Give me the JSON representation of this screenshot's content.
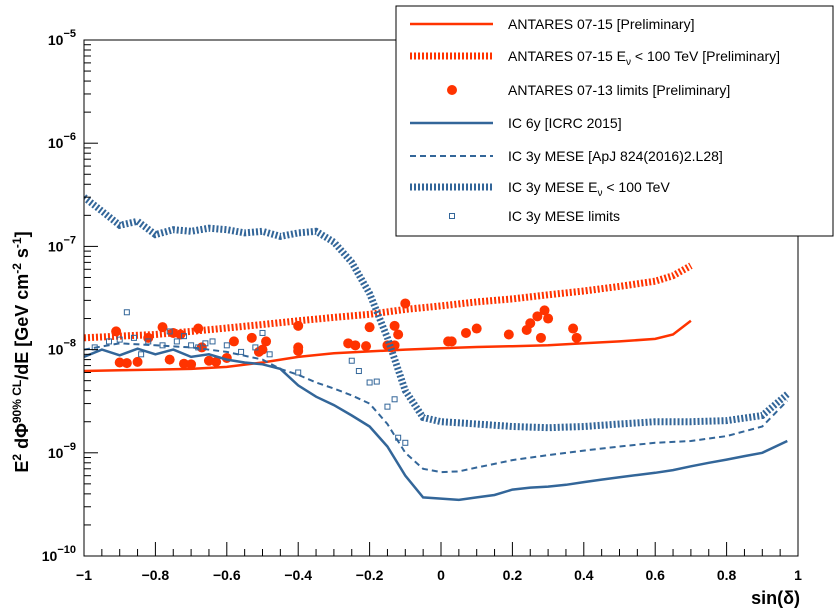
{
  "chart_data": {
    "type": "line",
    "y_scale": "log",
    "xlim": [
      -1,
      1
    ],
    "ylim": [
      1e-10,
      1e-05
    ],
    "xlabel": "sin(δ)",
    "ylabel": "E² dΦ^{90% CL}/dE [GeV cm⁻² s⁻¹]",
    "ylabel_parts": {
      "main1": "E",
      "sup1": "2",
      "main2": " dΦ",
      "sup2": "90% CL",
      "main3": "/dE [GeV cm",
      "sup3": "-2",
      "main4": " s",
      "sup4": "-1",
      "main5": "]"
    },
    "xlabel_parts": {
      "main": "sin(δ)"
    },
    "x_ticks": [
      {
        "value": -1,
        "label": "−1"
      },
      {
        "value": -0.8,
        "label": "−0.8"
      },
      {
        "value": -0.6,
        "label": "−0.6"
      },
      {
        "value": -0.4,
        "label": "−0.4"
      },
      {
        "value": -0.2,
        "label": "−0.2"
      },
      {
        "value": 0,
        "label": "0"
      },
      {
        "value": 0.2,
        "label": "0.2"
      },
      {
        "value": 0.4,
        "label": "0.4"
      },
      {
        "value": 0.6,
        "label": "0.6"
      },
      {
        "value": 0.8,
        "label": "0.8"
      },
      {
        "value": 1,
        "label": "1"
      }
    ],
    "y_ticks": [
      {
        "exp": -10,
        "base": "10",
        "sup": "−10"
      },
      {
        "exp": -9,
        "base": "10",
        "sup": "−9"
      },
      {
        "exp": -8,
        "base": "10",
        "sup": "−8"
      },
      {
        "exp": -7,
        "base": "10",
        "sup": "−7"
      },
      {
        "exp": -6,
        "base": "10",
        "sup": "−6"
      },
      {
        "exp": -5,
        "base": "10",
        "sup": "−5"
      }
    ],
    "legend_position": "top-right",
    "series": [
      {
        "name": "ANTARES 07-15 [Preliminary]",
        "legend": {
          "main": "ANTARES 07-15 [Preliminary]"
        },
        "style": "solid",
        "color": "#ff3300",
        "points": [
          [
            -1,
            6.2e-09
          ],
          [
            -0.9,
            6.3e-09
          ],
          [
            -0.8,
            6.4e-09
          ],
          [
            -0.7,
            6.5e-09
          ],
          [
            -0.6,
            6.8e-09
          ],
          [
            -0.5,
            7.5e-09
          ],
          [
            -0.4,
            8.5e-09
          ],
          [
            -0.3,
            9.2e-09
          ],
          [
            -0.2,
            9.6e-09
          ],
          [
            -0.1,
            1e-08
          ],
          [
            0,
            1.03e-08
          ],
          [
            0.1,
            1.06e-08
          ],
          [
            0.2,
            1.08e-08
          ],
          [
            0.3,
            1.1e-08
          ],
          [
            0.4,
            1.15e-08
          ],
          [
            0.5,
            1.2e-08
          ],
          [
            0.6,
            1.27e-08
          ],
          [
            0.65,
            1.4e-08
          ],
          [
            0.7,
            1.9e-08
          ]
        ]
      },
      {
        "name": "ANTARES 07-15 Eν < 100 TeV [Preliminary]",
        "legend": {
          "main": "ANTARES 07-15 E",
          "sub": "ν",
          "rest": " < 100 TeV [Preliminary]"
        },
        "style": "dense-dash",
        "color": "#ff3300",
        "points": [
          [
            -1,
            1.3e-08
          ],
          [
            -0.9,
            1.35e-08
          ],
          [
            -0.8,
            1.4e-08
          ],
          [
            -0.7,
            1.5e-08
          ],
          [
            -0.6,
            1.62e-08
          ],
          [
            -0.5,
            1.75e-08
          ],
          [
            -0.4,
            1.9e-08
          ],
          [
            -0.3,
            2.05e-08
          ],
          [
            -0.2,
            2.2e-08
          ],
          [
            -0.1,
            2.45e-08
          ],
          [
            0,
            2.65e-08
          ],
          [
            0.1,
            2.9e-08
          ],
          [
            0.2,
            3.1e-08
          ],
          [
            0.3,
            3.4e-08
          ],
          [
            0.4,
            3.7e-08
          ],
          [
            0.5,
            4.1e-08
          ],
          [
            0.6,
            4.6e-08
          ],
          [
            0.65,
            5.2e-08
          ],
          [
            0.7,
            6.5e-08
          ]
        ]
      },
      {
        "name": "ANTARES 07-13 limits [Preliminary]",
        "legend": {
          "main": "ANTARES 07-13 limits [Preliminary]"
        },
        "style": "markers-circle",
        "color": "#ff3300",
        "points": [
          [
            -0.91,
            1.5e-08
          ],
          [
            -0.9,
            7.5e-09
          ],
          [
            -0.88,
            7.4e-09
          ],
          [
            -0.85,
            7.6e-09
          ],
          [
            -0.82,
            1.3e-08
          ],
          [
            -0.78,
            1.65e-08
          ],
          [
            -0.76,
            8e-09
          ],
          [
            -0.75,
            1.45e-08
          ],
          [
            -0.73,
            1.4e-08
          ],
          [
            -0.72,
            7.3e-09
          ],
          [
            -0.7,
            7.2e-09
          ],
          [
            -0.68,
            1.6e-08
          ],
          [
            -0.67,
            1.05e-08
          ],
          [
            -0.65,
            7.8e-09
          ],
          [
            -0.63,
            7.6e-09
          ],
          [
            -0.6,
            8.3e-09
          ],
          [
            -0.58,
            1.2e-08
          ],
          [
            -0.53,
            1.3e-08
          ],
          [
            -0.51,
            9.5e-09
          ],
          [
            -0.5,
            1e-08
          ],
          [
            -0.49,
            1.2e-08
          ],
          [
            -0.4,
            1.7e-08
          ],
          [
            -0.4,
            1.05e-08
          ],
          [
            -0.4,
            9.7e-09
          ],
          [
            -0.26,
            1.15e-08
          ],
          [
            -0.24,
            1.1e-08
          ],
          [
            -0.21,
            1.08e-08
          ],
          [
            -0.2,
            1.65e-08
          ],
          [
            -0.15,
            1.1e-08
          ],
          [
            -0.14,
            1.05e-08
          ],
          [
            -0.13,
            1.1e-08
          ],
          [
            -0.13,
            1.7e-08
          ],
          [
            -0.12,
            1.4e-08
          ],
          [
            -0.1,
            2.8e-08
          ],
          [
            0.02,
            1.2e-08
          ],
          [
            0.03,
            1.2e-08
          ],
          [
            0.07,
            1.45e-08
          ],
          [
            0.1,
            1.6e-08
          ],
          [
            0.19,
            1.4e-08
          ],
          [
            0.24,
            1.55e-08
          ],
          [
            0.25,
            1.8e-08
          ],
          [
            0.27,
            2.1e-08
          ],
          [
            0.28,
            1.3e-08
          ],
          [
            0.29,
            2.4e-08
          ],
          [
            0.3,
            2e-08
          ],
          [
            0.37,
            1.6e-08
          ],
          [
            0.38,
            1.3e-08
          ]
        ]
      },
      {
        "name": "IC 6y [ICRC 2015]",
        "legend": {
          "main": "IC 6y [ICRC 2015]"
        },
        "style": "solid",
        "color": "#336699",
        "points": [
          [
            -1,
            8.5e-09
          ],
          [
            -0.95,
            1e-08
          ],
          [
            -0.9,
            8.8e-09
          ],
          [
            -0.85,
            1.02e-08
          ],
          [
            -0.8,
            9e-09
          ],
          [
            -0.75,
            1e-08
          ],
          [
            -0.7,
            8.5e-09
          ],
          [
            -0.65,
            9e-09
          ],
          [
            -0.6,
            8e-09
          ],
          [
            -0.55,
            7.5e-09
          ],
          [
            -0.5,
            7.2e-09
          ],
          [
            -0.45,
            6.5e-09
          ],
          [
            -0.4,
            4.5e-09
          ],
          [
            -0.35,
            3.5e-09
          ],
          [
            -0.3,
            2.9e-09
          ],
          [
            -0.25,
            2.3e-09
          ],
          [
            -0.2,
            1.8e-09
          ],
          [
            -0.15,
            1.15e-09
          ],
          [
            -0.1,
            6e-10
          ],
          [
            -0.05,
            3.7e-10
          ],
          [
            0,
            3.6e-10
          ],
          [
            0.05,
            3.5e-10
          ],
          [
            0.1,
            3.7e-10
          ],
          [
            0.15,
            3.9e-10
          ],
          [
            0.2,
            4.4e-10
          ],
          [
            0.25,
            4.6e-10
          ],
          [
            0.3,
            4.7e-10
          ],
          [
            0.35,
            4.9e-10
          ],
          [
            0.4,
            5.2e-10
          ],
          [
            0.45,
            5.5e-10
          ],
          [
            0.5,
            5.8e-10
          ],
          [
            0.55,
            6.1e-10
          ],
          [
            0.6,
            6.4e-10
          ],
          [
            0.65,
            6.8e-10
          ],
          [
            0.7,
            7.4e-10
          ],
          [
            0.75,
            8e-10
          ],
          [
            0.8,
            8.6e-10
          ],
          [
            0.85,
            9.3e-10
          ],
          [
            0.9,
            1e-09
          ],
          [
            0.97,
            1.3e-09
          ]
        ]
      },
      {
        "name": "IC 3y MESE [ApJ 824(2016)2.L28]",
        "legend": {
          "main": "IC 3y MESE [ApJ 824(2016)2.L28]"
        },
        "style": "dashed",
        "color": "#336699",
        "points": [
          [
            -1,
            1e-08
          ],
          [
            -0.9,
            1.15e-08
          ],
          [
            -0.8,
            1.1e-08
          ],
          [
            -0.7,
            1.05e-08
          ],
          [
            -0.6,
            9.5e-09
          ],
          [
            -0.5,
            8e-09
          ],
          [
            -0.45,
            6.5e-09
          ],
          [
            -0.4,
            5.7e-09
          ],
          [
            -0.35,
            4.8e-09
          ],
          [
            -0.3,
            4.2e-09
          ],
          [
            -0.25,
            3.6e-09
          ],
          [
            -0.2,
            3e-09
          ],
          [
            -0.15,
            1.9e-09
          ],
          [
            -0.1,
            1e-09
          ],
          [
            -0.05,
            7e-10
          ],
          [
            0,
            6.5e-10
          ],
          [
            0.05,
            6.6e-10
          ],
          [
            0.1,
            7.2e-10
          ],
          [
            0.15,
            7.8e-10
          ],
          [
            0.2,
            8.5e-10
          ],
          [
            0.3,
            9.5e-10
          ],
          [
            0.4,
            1.05e-09
          ],
          [
            0.5,
            1.15e-09
          ],
          [
            0.6,
            1.25e-09
          ],
          [
            0.7,
            1.3e-09
          ],
          [
            0.8,
            1.45e-09
          ],
          [
            0.9,
            1.8e-09
          ],
          [
            0.97,
            3.2e-09
          ]
        ]
      },
      {
        "name": "IC 3y MESE Eν < 100 TeV",
        "legend": {
          "main": "IC 3y MESE E",
          "sub": "ν",
          "rest": " < 100 TeV"
        },
        "style": "dense-dash",
        "color": "#336699",
        "points": [
          [
            -1,
            3e-07
          ],
          [
            -0.95,
            2.2e-07
          ],
          [
            -0.9,
            1.6e-07
          ],
          [
            -0.85,
            1.75e-07
          ],
          [
            -0.8,
            1.3e-07
          ],
          [
            -0.75,
            1.45e-07
          ],
          [
            -0.7,
            1.4e-07
          ],
          [
            -0.65,
            1.5e-07
          ],
          [
            -0.6,
            1.45e-07
          ],
          [
            -0.55,
            1.35e-07
          ],
          [
            -0.5,
            1.4e-07
          ],
          [
            -0.45,
            1.25e-07
          ],
          [
            -0.4,
            1.35e-07
          ],
          [
            -0.35,
            1.4e-07
          ],
          [
            -0.3,
            1.1e-07
          ],
          [
            -0.25,
            7e-08
          ],
          [
            -0.2,
            3.5e-08
          ],
          [
            -0.15,
            1.3e-08
          ],
          [
            -0.1,
            4e-09
          ],
          [
            -0.05,
            2.2e-09
          ],
          [
            0,
            2e-09
          ],
          [
            0.1,
            1.9e-09
          ],
          [
            0.2,
            1.8e-09
          ],
          [
            0.3,
            1.75e-09
          ],
          [
            0.4,
            1.8e-09
          ],
          [
            0.5,
            1.9e-09
          ],
          [
            0.6,
            2e-09
          ],
          [
            0.7,
            2e-09
          ],
          [
            0.8,
            2.05e-09
          ],
          [
            0.9,
            2.3e-09
          ],
          [
            0.97,
            3.7e-09
          ]
        ]
      },
      {
        "name": "IC 3y MESE limits",
        "legend": {
          "main": "IC 3y MESE limits"
        },
        "style": "markers-square",
        "color": "#336699",
        "points": [
          [
            -0.97,
            1.05e-08
          ],
          [
            -0.93,
            1.2e-08
          ],
          [
            -0.9,
            1.25e-08
          ],
          [
            -0.88,
            2.3e-08
          ],
          [
            -0.86,
            1.3e-08
          ],
          [
            -0.84,
            9e-09
          ],
          [
            -0.82,
            1.2e-08
          ],
          [
            -0.78,
            1.1e-08
          ],
          [
            -0.76,
            1.5e-08
          ],
          [
            -0.74,
            1.2e-08
          ],
          [
            -0.72,
            1.35e-08
          ],
          [
            -0.7,
            1.1e-08
          ],
          [
            -0.68,
            1.05e-08
          ],
          [
            -0.66,
            1.15e-08
          ],
          [
            -0.64,
            1.2e-08
          ],
          [
            -0.6,
            1.1e-08
          ],
          [
            -0.56,
            9.5e-09
          ],
          [
            -0.52,
            1.05e-08
          ],
          [
            -0.5,
            1.45e-08
          ],
          [
            -0.48,
            9e-09
          ],
          [
            -0.4,
            6e-09
          ],
          [
            -0.25,
            7.8e-09
          ],
          [
            -0.23,
            6.2e-09
          ],
          [
            -0.2,
            4.8e-09
          ],
          [
            -0.18,
            4.9e-09
          ],
          [
            -0.15,
            2.8e-09
          ],
          [
            -0.13,
            3.3e-09
          ],
          [
            -0.12,
            1.4e-09
          ],
          [
            -0.1,
            1.25e-09
          ]
        ]
      }
    ]
  }
}
